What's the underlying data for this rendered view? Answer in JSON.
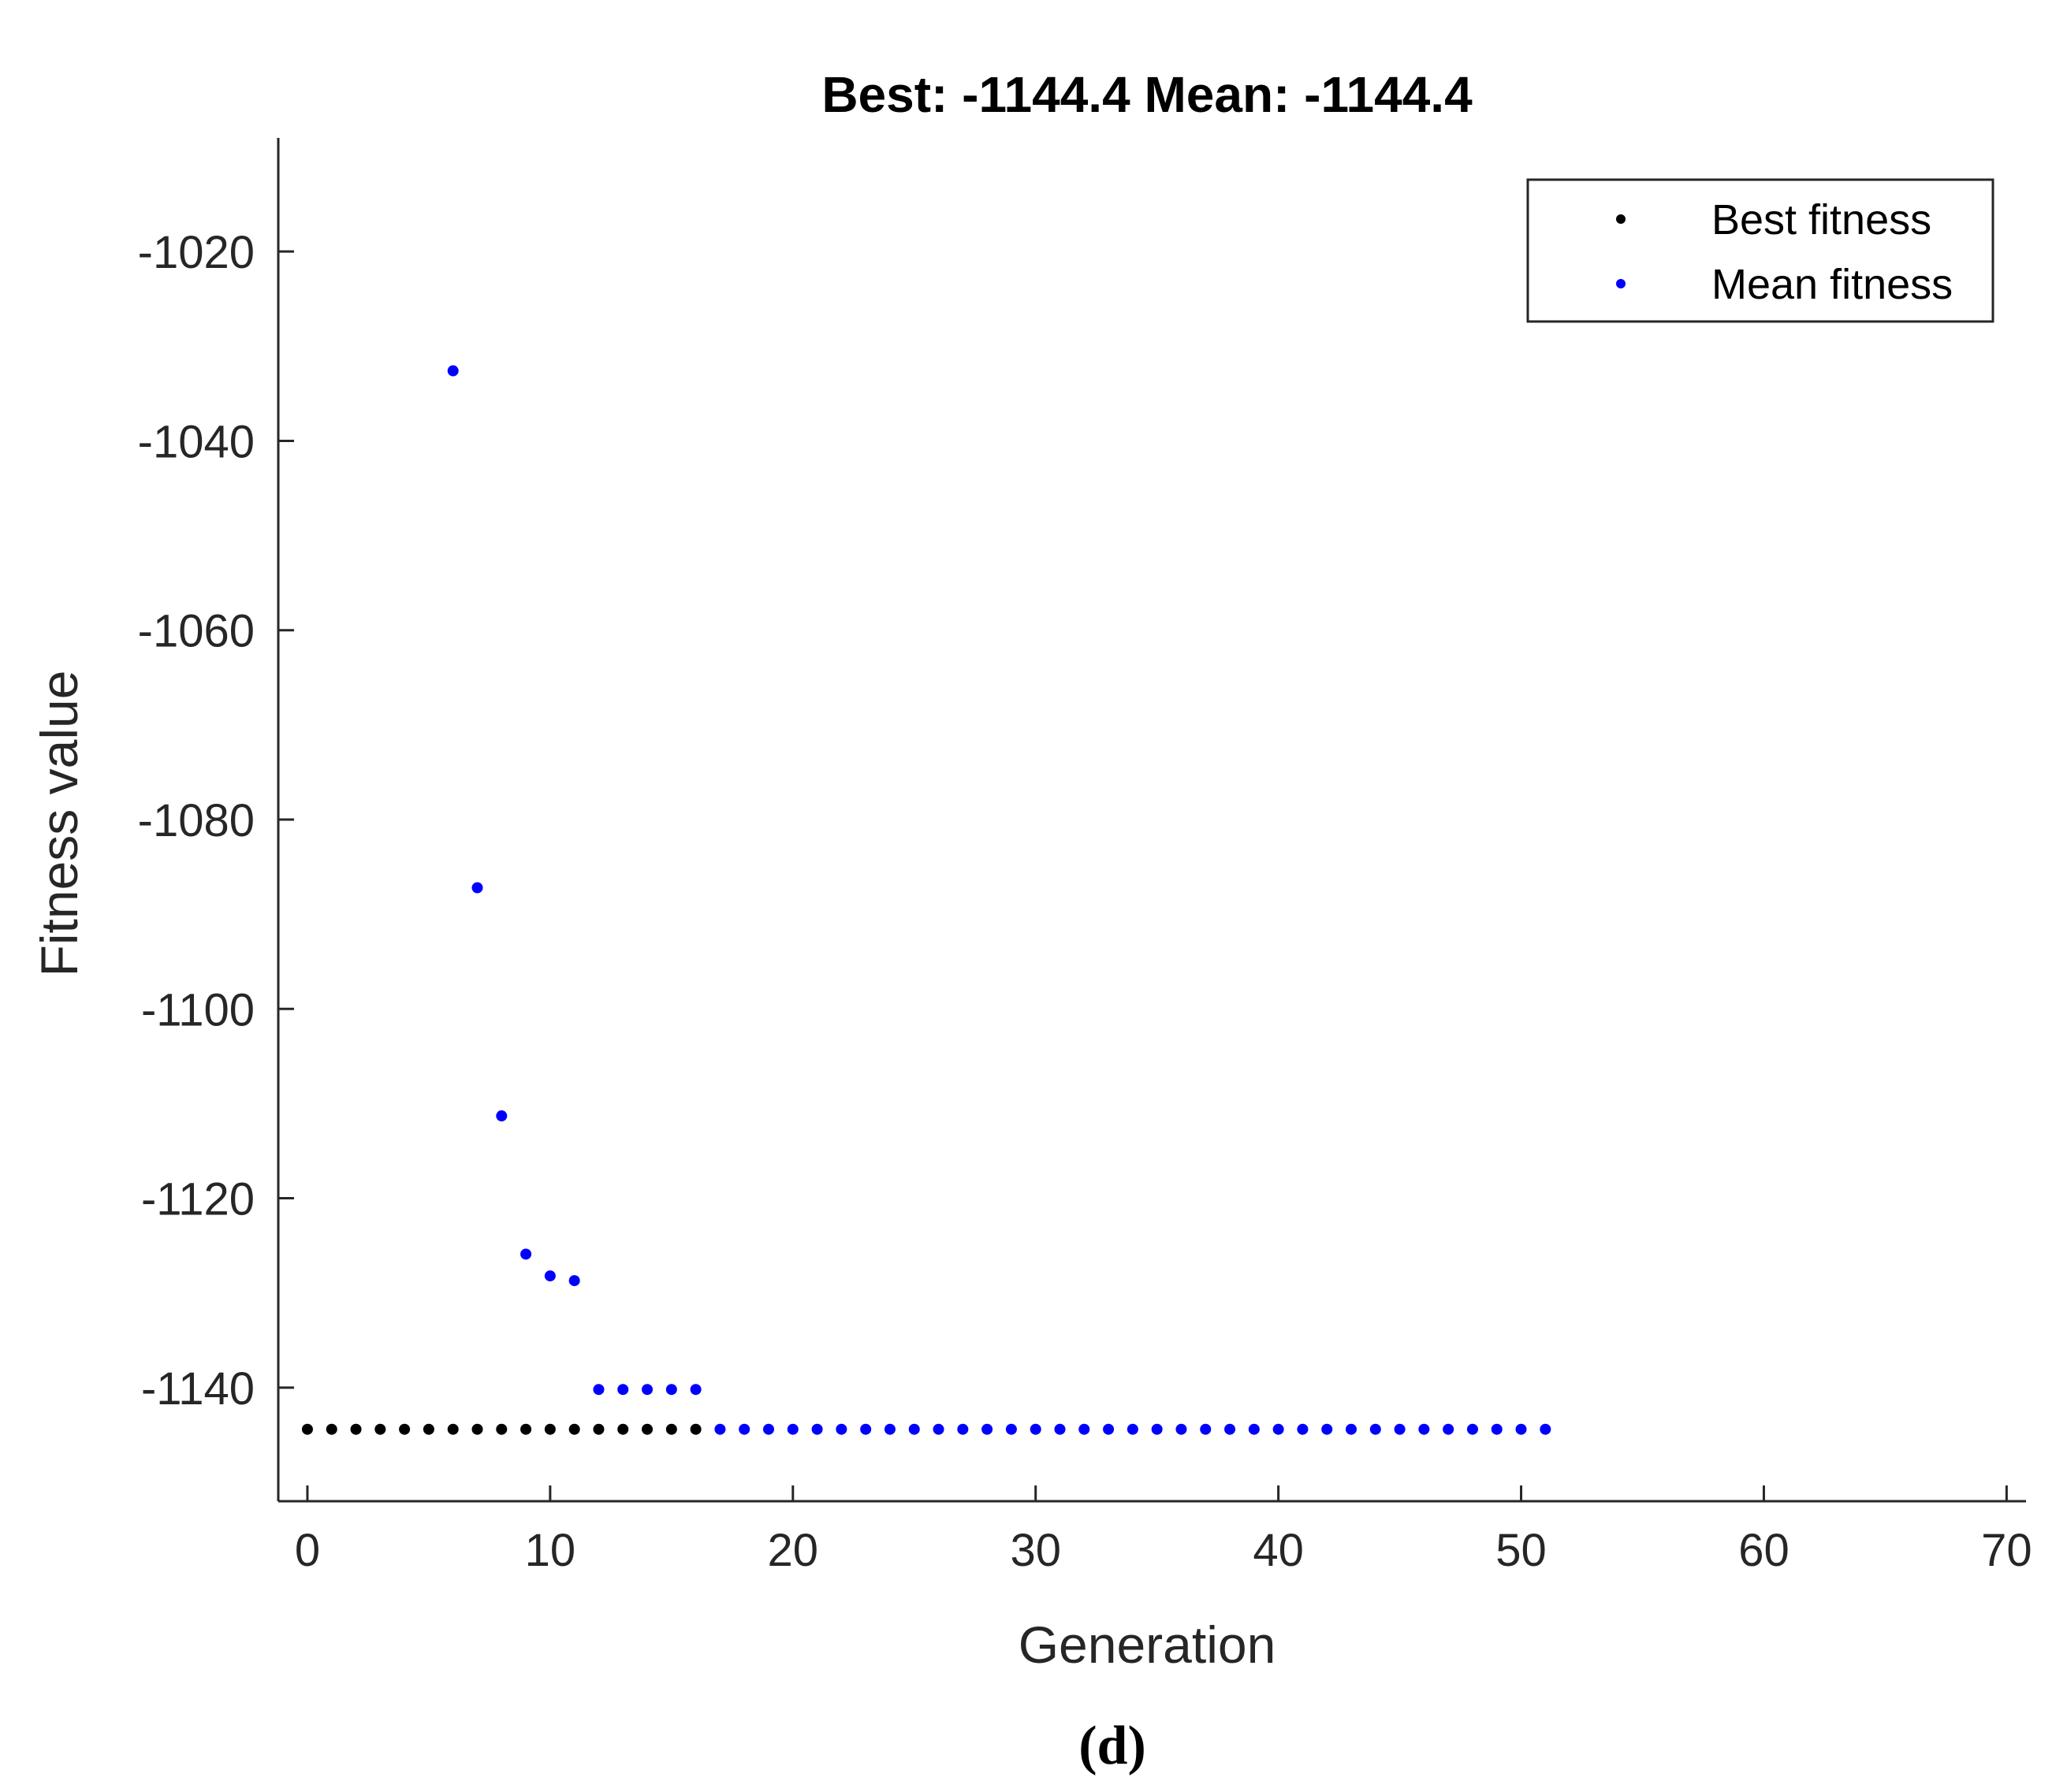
{
  "chart_data": {
    "type": "scatter",
    "title": "Best: -1144.4 Mean: -1144.4",
    "xlabel": "Generation",
    "ylabel": "Fitness value",
    "xlim": [
      -1.2,
      70.8
    ],
    "ylim": [
      -1152,
      -1008
    ],
    "xticks": [
      0,
      10,
      20,
      30,
      40,
      50,
      60,
      70
    ],
    "yticks": [
      -1020,
      -1040,
      -1060,
      -1080,
      -1100,
      -1120,
      -1140
    ],
    "grid": false,
    "legend_position": "top-right",
    "series": [
      {
        "name": "Best fitness",
        "color": "#000000",
        "points": [
          [
            0,
            -1144.4
          ],
          [
            1,
            -1144.4
          ],
          [
            2,
            -1144.4
          ],
          [
            3,
            -1144.4
          ],
          [
            4,
            -1144.4
          ],
          [
            5,
            -1144.4
          ],
          [
            6,
            -1144.4
          ],
          [
            7,
            -1144.4
          ],
          [
            8,
            -1144.4
          ],
          [
            9,
            -1144.4
          ],
          [
            10,
            -1144.4
          ],
          [
            11,
            -1144.4
          ],
          [
            12,
            -1144.4
          ],
          [
            13,
            -1144.4
          ],
          [
            14,
            -1144.4
          ],
          [
            15,
            -1144.4
          ],
          [
            16,
            -1144.4
          ]
        ]
      },
      {
        "name": "Mean fitness",
        "color": "#0000ff",
        "points": [
          [
            6,
            -1032.6
          ],
          [
            7,
            -1087.2
          ],
          [
            8,
            -1111.3
          ],
          [
            9,
            -1125.9
          ],
          [
            10,
            -1128.2
          ],
          [
            11,
            -1128.7
          ],
          [
            12,
            -1140.2
          ],
          [
            13,
            -1140.2
          ],
          [
            14,
            -1140.2
          ],
          [
            15,
            -1140.2
          ],
          [
            16,
            -1140.2
          ],
          [
            17,
            -1144.4
          ],
          [
            18,
            -1144.4
          ],
          [
            19,
            -1144.4
          ],
          [
            20,
            -1144.4
          ],
          [
            21,
            -1144.4
          ],
          [
            22,
            -1144.4
          ],
          [
            23,
            -1144.4
          ],
          [
            24,
            -1144.4
          ],
          [
            25,
            -1144.4
          ],
          [
            26,
            -1144.4
          ],
          [
            27,
            -1144.4
          ],
          [
            28,
            -1144.4
          ],
          [
            29,
            -1144.4
          ],
          [
            30,
            -1144.4
          ],
          [
            31,
            -1144.4
          ],
          [
            32,
            -1144.4
          ],
          [
            33,
            -1144.4
          ],
          [
            34,
            -1144.4
          ],
          [
            35,
            -1144.4
          ],
          [
            36,
            -1144.4
          ],
          [
            37,
            -1144.4
          ],
          [
            38,
            -1144.4
          ],
          [
            39,
            -1144.4
          ],
          [
            40,
            -1144.4
          ],
          [
            41,
            -1144.4
          ],
          [
            42,
            -1144.4
          ],
          [
            43,
            -1144.4
          ],
          [
            44,
            -1144.4
          ],
          [
            45,
            -1144.4
          ],
          [
            46,
            -1144.4
          ],
          [
            47,
            -1144.4
          ],
          [
            48,
            -1144.4
          ],
          [
            49,
            -1144.4
          ],
          [
            50,
            -1144.4
          ],
          [
            51,
            -1144.4
          ]
        ]
      }
    ]
  },
  "caption": "(d)"
}
